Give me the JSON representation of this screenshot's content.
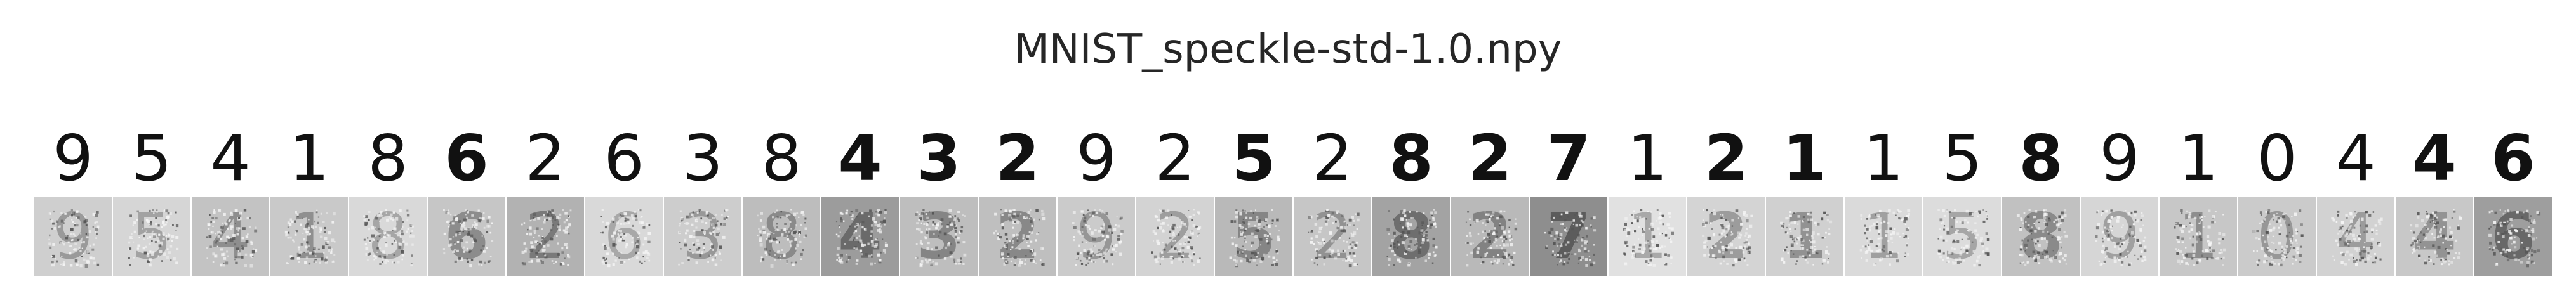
{
  "figure": {
    "title": "MNIST_speckle-std-1.0.npy"
  },
  "samples": [
    {
      "digit": "9",
      "noisy_bg": "#cfcfcf",
      "stroke_gray": "#9a9a9a",
      "weight": 0.45
    },
    {
      "digit": "5",
      "noisy_bg": "#d6d6d6",
      "stroke_gray": "#a2a2a2",
      "weight": 0.55
    },
    {
      "digit": "4",
      "noisy_bg": "#c3c3c3",
      "stroke_gray": "#8e8e8e",
      "weight": 0.55
    },
    {
      "digit": "1",
      "noisy_bg": "#c9c9c9",
      "stroke_gray": "#8f8f8f",
      "weight": 0.6
    },
    {
      "digit": "8",
      "noisy_bg": "#d9d9d9",
      "stroke_gray": "#a6a6a6",
      "weight": 0.45
    },
    {
      "digit": "6",
      "noisy_bg": "#c6c6c6",
      "stroke_gray": "#8c8c8c",
      "weight": 0.85
    },
    {
      "digit": "2",
      "noisy_bg": "#b2b2b2",
      "stroke_gray": "#7a7a7a",
      "weight": 0.5
    },
    {
      "digit": "6",
      "noisy_bg": "#d9d9d9",
      "stroke_gray": "#a8a8a8",
      "weight": 0.4
    },
    {
      "digit": "3",
      "noisy_bg": "#cdcdcd",
      "stroke_gray": "#989898",
      "weight": 0.45
    },
    {
      "digit": "8",
      "noisy_bg": "#bdbdbd",
      "stroke_gray": "#8a8a8a",
      "weight": 0.35
    },
    {
      "digit": "4",
      "noisy_bg": "#9c9c9c",
      "stroke_gray": "#6a6a6a",
      "weight": 0.85
    },
    {
      "digit": "3",
      "noisy_bg": "#bebebe",
      "stroke_gray": "#858585",
      "weight": 0.85
    },
    {
      "digit": "2",
      "noisy_bg": "#bfbfbf",
      "stroke_gray": "#888888",
      "weight": 0.7
    },
    {
      "digit": "9",
      "noisy_bg": "#cbcbcb",
      "stroke_gray": "#969696",
      "weight": 0.45
    },
    {
      "digit": "2",
      "noisy_bg": "#d3d3d3",
      "stroke_gray": "#9e9e9e",
      "weight": 0.55
    },
    {
      "digit": "5",
      "noisy_bg": "#b9b9b9",
      "stroke_gray": "#858585",
      "weight": 0.8
    },
    {
      "digit": "2",
      "noisy_bg": "#c6c6c6",
      "stroke_gray": "#929292",
      "weight": 0.5
    },
    {
      "digit": "8",
      "noisy_bg": "#a3a3a3",
      "stroke_gray": "#6e6e6e",
      "weight": 0.8
    },
    {
      "digit": "2",
      "noisy_bg": "#b9b9b9",
      "stroke_gray": "#828282",
      "weight": 0.75
    },
    {
      "digit": "7",
      "noisy_bg": "#8e8e8e",
      "stroke_gray": "#5c5c5c",
      "weight": 0.9
    },
    {
      "digit": "1",
      "noisy_bg": "#e1e1e1",
      "stroke_gray": "#a8a8a8",
      "weight": 0.6
    },
    {
      "digit": "2",
      "noisy_bg": "#d4d4d4",
      "stroke_gray": "#9c9c9c",
      "weight": 0.85
    },
    {
      "digit": "1",
      "noisy_bg": "#d0d0d0",
      "stroke_gray": "#929292",
      "weight": 0.85
    },
    {
      "digit": "1",
      "noisy_bg": "#dadada",
      "stroke_gray": "#a0a0a0",
      "weight": 0.55
    },
    {
      "digit": "5",
      "noisy_bg": "#dcdcdc",
      "stroke_gray": "#a6a6a6",
      "weight": 0.45
    },
    {
      "digit": "8",
      "noisy_bg": "#c1c1c1",
      "stroke_gray": "#8a8a8a",
      "weight": 0.85
    },
    {
      "digit": "9",
      "noisy_bg": "#d6d6d6",
      "stroke_gray": "#a0a0a0",
      "weight": 0.5
    },
    {
      "digit": "1",
      "noisy_bg": "#c7c7c7",
      "stroke_gray": "#8e8e8e",
      "weight": 0.6
    },
    {
      "digit": "0",
      "noisy_bg": "#cbcbcb",
      "stroke_gray": "#979797",
      "weight": 0.5
    },
    {
      "digit": "4",
      "noisy_bg": "#d2d2d2",
      "stroke_gray": "#9c9c9c",
      "weight": 0.45
    },
    {
      "digit": "4",
      "noisy_bg": "#c8c8c8",
      "stroke_gray": "#939393",
      "weight": 0.75
    },
    {
      "digit": "6",
      "noisy_bg": "#9e9e9e",
      "stroke_gray": "#686868",
      "weight": 0.85
    }
  ]
}
